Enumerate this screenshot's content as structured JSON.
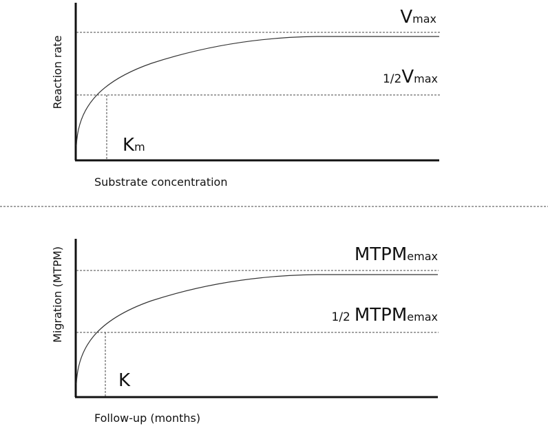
{
  "top_panel": {
    "ylabel": "Reaction rate",
    "xlabel": "Substrate concentration",
    "max_label": {
      "main": "V",
      "sub": "max"
    },
    "half_label": {
      "prefix": "1/2",
      "main": "V",
      "sub": "max"
    },
    "k_label": {
      "main": "K",
      "sub": "m"
    }
  },
  "bottom_panel": {
    "ylabel": "Migration (MTPM)",
    "xlabel": "Follow-up (months)",
    "max_label": {
      "main": "MTPM",
      "sub": "emax"
    },
    "half_label": {
      "prefix": "1/2",
      "main": "MTPM",
      "sub": "emax"
    },
    "k_label": {
      "main": "K",
      "sub": ""
    }
  },
  "colors": {
    "axis": "#111111",
    "curve": "#333333",
    "dashed": "#444444"
  }
}
